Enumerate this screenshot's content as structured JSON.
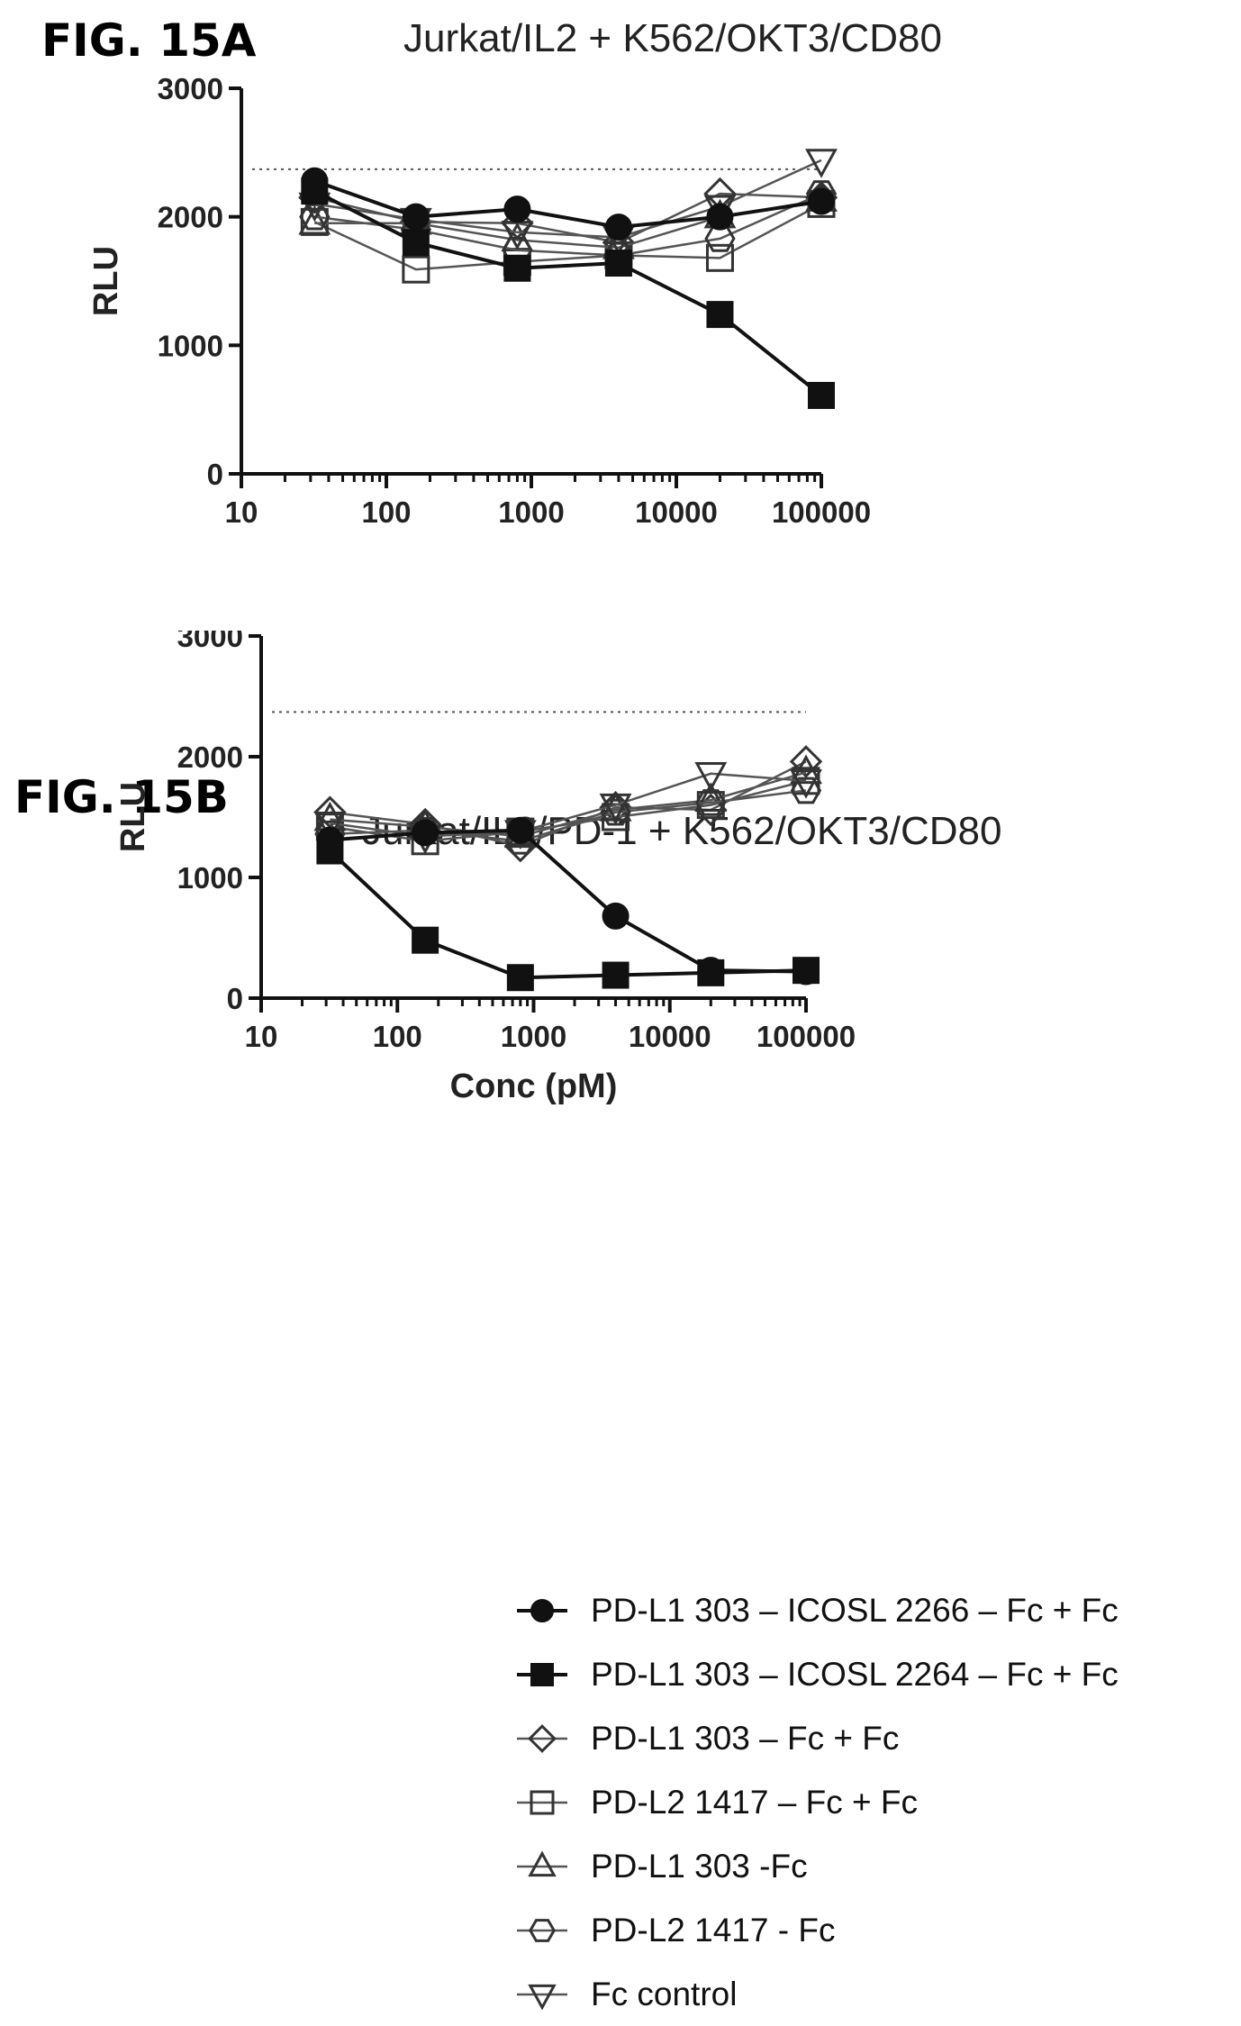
{
  "figures": [
    {
      "label": "FIG. 15A",
      "title": "Jurkat/IL2  + K562/OKT3/CD80"
    },
    {
      "label": "FIG. 15B",
      "title": "Jurkat/IL2/PD-1  + K562/OKT3/CD80"
    }
  ],
  "legend": [
    {
      "label": "PD-L1 303  – ICOSL 2266 – Fc +  Fc",
      "marker": "circle-filled"
    },
    {
      "label": "PD-L1 303  – ICOSL 2264 – Fc +  Fc",
      "marker": "square-filled"
    },
    {
      "label": "PD-L1 303  – Fc +  Fc",
      "marker": "diamond-open"
    },
    {
      "label": "PD-L2 1417  – Fc +  Fc",
      "marker": "square-open"
    },
    {
      "label": "PD-L1 303 -Fc",
      "marker": "triangle-up-open"
    },
    {
      "label": "PD-L2 1417 - Fc",
      "marker": "hexagon-open"
    },
    {
      "label": "Fc control",
      "marker": "triangle-down-open"
    }
  ],
  "chart_data": [
    {
      "type": "line",
      "title": "Jurkat/IL2  + K562/OKT3/CD80",
      "xlabel": "",
      "ylabel": "RLU",
      "xscale": "log",
      "xlim": [
        10,
        100000
      ],
      "ylim": [
        0,
        3000
      ],
      "xticks": [
        "10",
        "100",
        "1000",
        "10000",
        "100000"
      ],
      "yticks": [
        "0",
        "1000",
        "2000",
        "3000"
      ],
      "reference_line": 2370,
      "x": [
        32,
        160,
        800,
        4000,
        20000,
        100000
      ],
      "series": [
        {
          "name": "PD-L1 303  – ICOSL 2266 – Fc +  Fc",
          "marker": "circle-filled",
          "values": [
            2280,
            2000,
            2060,
            1920,
            2000,
            2120
          ]
        },
        {
          "name": "PD-L1 303  – ICOSL 2264 – Fc +  Fc",
          "marker": "square-filled",
          "values": [
            2200,
            1800,
            1600,
            1640,
            1240,
            610
          ]
        },
        {
          "name": "PD-L1 303  – Fc +  Fc",
          "marker": "diamond-open",
          "values": [
            2150,
            1960,
            1950,
            1800,
            2180,
            2150
          ]
        },
        {
          "name": "PD-L2 1417  – Fc +  Fc",
          "marker": "square-open",
          "values": [
            1960,
            1590,
            1650,
            1700,
            1680,
            2100
          ]
        },
        {
          "name": "PD-L1 303 -Fc",
          "marker": "triangle-up-open",
          "values": [
            1950,
            1950,
            1820,
            1760,
            2000,
            2130
          ]
        },
        {
          "name": "PD-L2 1417 - Fc",
          "marker": "hexagon-open",
          "values": [
            2000,
            1900,
            1740,
            1700,
            1830,
            2180
          ]
        },
        {
          "name": "Fc control",
          "marker": "triangle-down-open",
          "values": [
            2100,
            1980,
            1880,
            1840,
            2080,
            2440
          ]
        }
      ]
    },
    {
      "type": "line",
      "title": "Jurkat/IL2/PD-1  + K562/OKT3/CD80",
      "xlabel": "Conc (pM)",
      "ylabel": "RLU",
      "xscale": "log",
      "xlim": [
        10,
        100000
      ],
      "ylim": [
        0,
        3000
      ],
      "xticks": [
        "10",
        "100",
        "1000",
        "10000",
        "100000"
      ],
      "yticks": [
        "0",
        "1000",
        "2000",
        "3000"
      ],
      "reference_line": 2370,
      "x": [
        32,
        160,
        800,
        4000,
        20000,
        100000
      ],
      "series": [
        {
          "name": "PD-L1 303  – ICOSL 2266 – Fc +  Fc",
          "marker": "circle-filled",
          "values": [
            1310,
            1370,
            1390,
            680,
            230,
            220
          ]
        },
        {
          "name": "PD-L1 303  – ICOSL 2264 – Fc +  Fc",
          "marker": "square-filled",
          "values": [
            1220,
            480,
            170,
            190,
            210,
            230
          ]
        },
        {
          "name": "PD-L1 303  – Fc +  Fc",
          "marker": "diamond-open",
          "values": [
            1540,
            1440,
            1260,
            1580,
            1560,
            1960
          ]
        },
        {
          "name": "PD-L2 1417  – Fc +  Fc",
          "marker": "square-open",
          "values": [
            1420,
            1300,
            1380,
            1500,
            1600,
            1800
          ]
        },
        {
          "name": "PD-L1 303 -Fc",
          "marker": "triangle-up-open",
          "values": [
            1480,
            1420,
            1340,
            1560,
            1640,
            1870
          ]
        },
        {
          "name": "PD-L2 1417 - Fc",
          "marker": "hexagon-open",
          "values": [
            1360,
            1390,
            1300,
            1540,
            1620,
            1720
          ]
        },
        {
          "name": "Fc control",
          "marker": "triangle-down-open",
          "values": [
            1450,
            1340,
            1380,
            1600,
            1860,
            1800
          ]
        }
      ]
    }
  ]
}
